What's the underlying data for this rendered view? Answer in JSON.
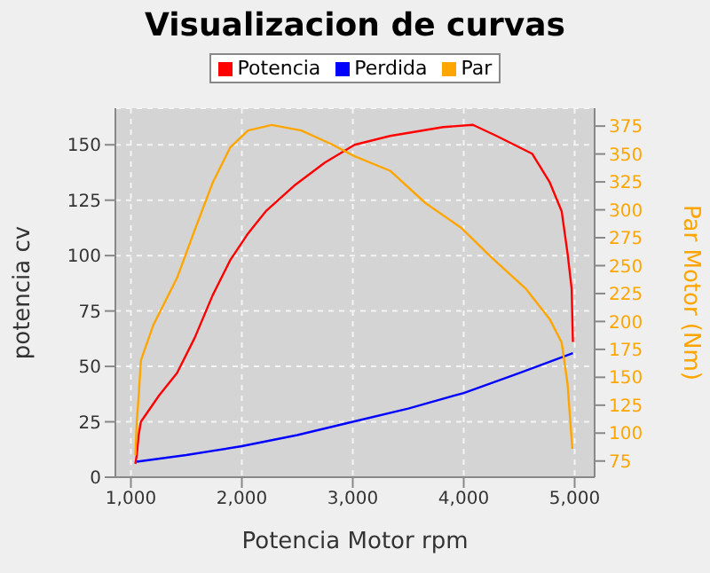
{
  "chart_data": {
    "type": "line",
    "title": "Visualizacion de curvas",
    "xlabel": "Potencia Motor rpm",
    "ylabel": "potencia cv",
    "y2label": "Par Motor (Nm)",
    "xlim": [
      860,
      5180
    ],
    "xticks": [
      {
        "value": 1000,
        "label": "1,000"
      },
      {
        "value": 2000,
        "label": "2,000"
      },
      {
        "value": 3000,
        "label": "3,000"
      },
      {
        "value": 4000,
        "label": "4,000"
      },
      {
        "value": 5000,
        "label": "5,000"
      }
    ],
    "ylim": [
      0,
      166.5
    ],
    "yticks": [
      0,
      25,
      50,
      75,
      100,
      125,
      150
    ],
    "y2lim": [
      60.5,
      391
    ],
    "y2ticks": [
      75,
      100,
      125,
      150,
      175,
      200,
      225,
      250,
      275,
      300,
      325,
      350,
      375
    ],
    "grid": true,
    "legend": "top",
    "marker": "none",
    "line_style": "solid",
    "series": [
      {
        "name": "Potencia",
        "color": "#ff0000",
        "x": [
          1040,
          1053,
          1070,
          1090,
          1256,
          1416,
          1576,
          1736,
          1896,
          2056,
          2216,
          2483,
          2749,
          3016,
          3336,
          3816,
          4083,
          4296,
          4616,
          4776,
          4883,
          4936,
          4973,
          4984
        ],
        "values": [
          6,
          10,
          19,
          25,
          37,
          47,
          63,
          82,
          98,
          110,
          120,
          132,
          142,
          150,
          154,
          158,
          159,
          154,
          146,
          133,
          120,
          101,
          85,
          61
        ]
      },
      {
        "name": "Perdida",
        "color": "#0000ff",
        "x": [
          1053,
          1500,
          2000,
          2500,
          3000,
          3500,
          4000,
          4500,
          4984
        ],
        "values": [
          7,
          10,
          14,
          19,
          25,
          31,
          38,
          47,
          56
        ]
      },
      {
        "name": "Par",
        "color": "#ffa500",
        "axis": "y2",
        "x": [
          1040,
          1053,
          1070,
          1090,
          1203,
          1416,
          1576,
          1736,
          1896,
          2056,
          2269,
          2536,
          2803,
          3016,
          3336,
          3656,
          3976,
          4243,
          4563,
          4776,
          4883,
          4936,
          4979
        ],
        "values": [
          80,
          110,
          133,
          165,
          197,
          239,
          282,
          324,
          356,
          371,
          376,
          371,
          359,
          348,
          335,
          306,
          284,
          258,
          229,
          202,
          181,
          144,
          86
        ]
      }
    ]
  }
}
